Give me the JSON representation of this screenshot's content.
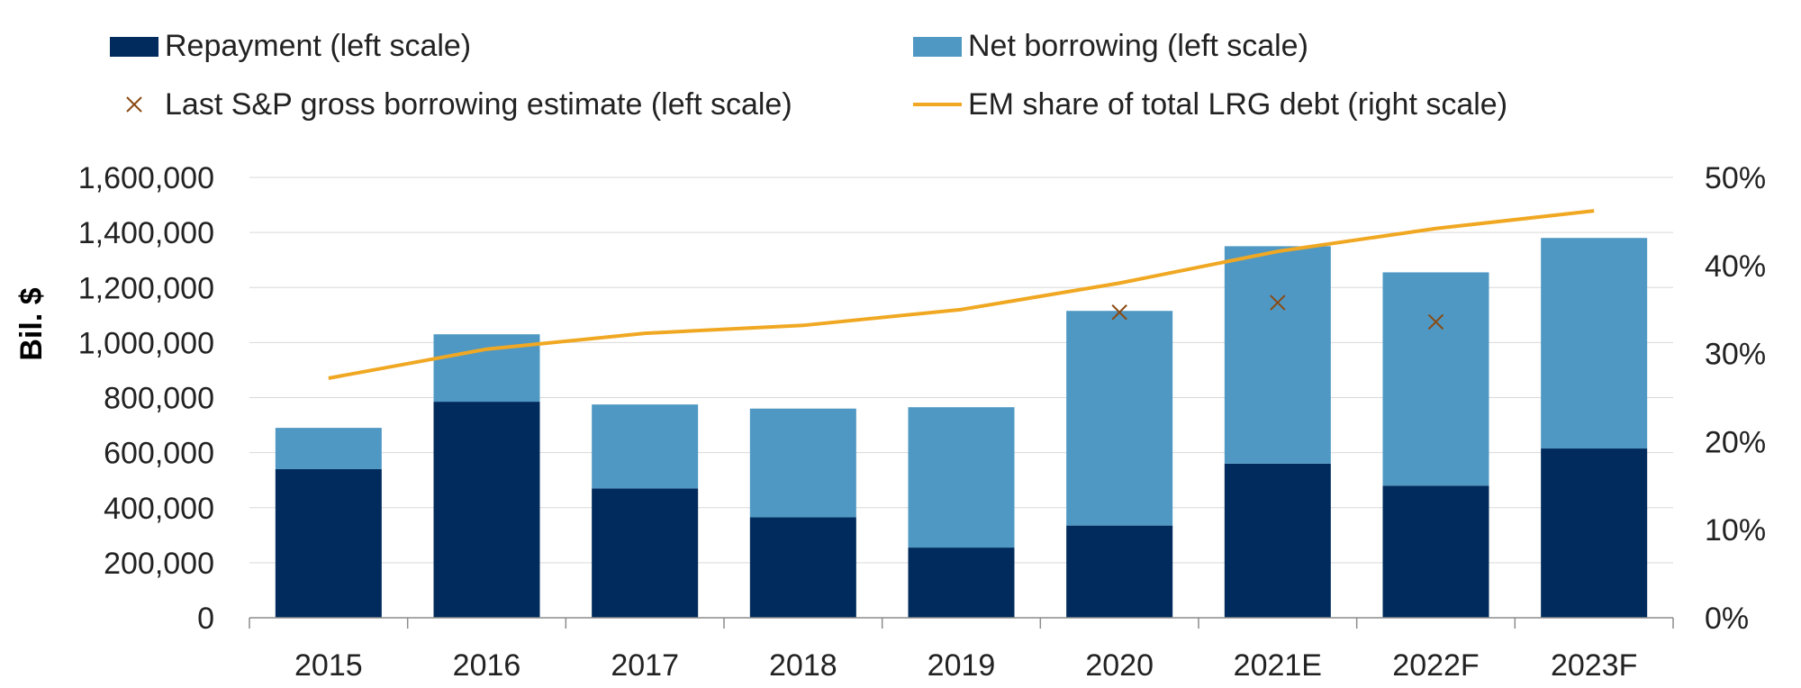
{
  "colors": {
    "repayment": "#002b5c",
    "net_borrowing": "#4f98c4",
    "estimate_marker": "#8a4a12",
    "em_share_line": "#f0a823",
    "grid": "#d9d9d9",
    "axis": "#8c8c8c"
  },
  "chart_data": {
    "type": "bar",
    "stacked": true,
    "categories": [
      "2015",
      "2016",
      "2017",
      "2018",
      "2019",
      "2020",
      "2021E",
      "2022F",
      "2023F"
    ],
    "series": [
      {
        "name": "Repayment (left scale)",
        "axis": "left",
        "kind": "bar",
        "values": [
          540000,
          785000,
          470000,
          365000,
          255000,
          335000,
          560000,
          480000,
          615000
        ]
      },
      {
        "name": "Net borrowing (left scale)",
        "axis": "left",
        "kind": "bar",
        "values": [
          150000,
          245000,
          305000,
          395000,
          510000,
          780000,
          790000,
          775000,
          765000
        ]
      },
      {
        "name": "Last S&P gross borrowing estimate (left scale)",
        "axis": "left",
        "kind": "marker",
        "values": [
          null,
          null,
          null,
          null,
          null,
          1110000,
          1145000,
          1075000,
          null
        ]
      },
      {
        "name": "EM share of total LRG debt (right scale)",
        "axis": "right",
        "kind": "line",
        "values": [
          27.2,
          30.5,
          32.3,
          33.2,
          35.0,
          38.0,
          41.6,
          44.2,
          46.2
        ]
      }
    ],
    "ylabel": "Bil. $",
    "ylim": [
      0,
      1600000
    ],
    "yticks": [
      "0",
      "200,000",
      "400,000",
      "600,000",
      "800,000",
      "1,000,000",
      "1,200,000",
      "1,400,000",
      "1,600,000"
    ],
    "y2lim": [
      0,
      50
    ],
    "y2ticks": [
      "0%",
      "10%",
      "20%",
      "30%",
      "40%",
      "50%"
    ],
    "grid": true,
    "legend_position": "top"
  }
}
